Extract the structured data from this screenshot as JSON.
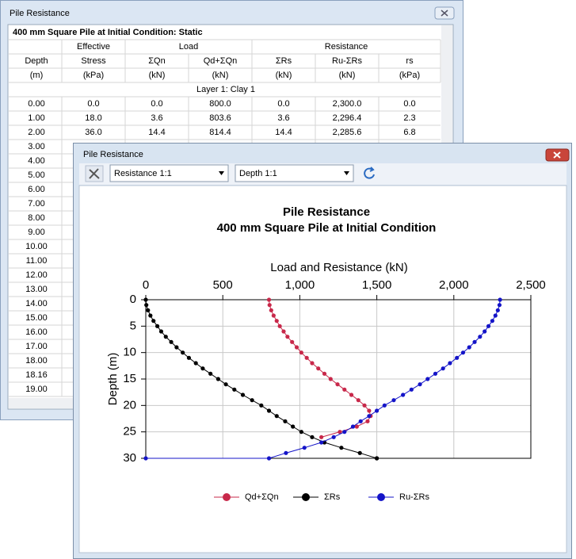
{
  "back_window": {
    "title": "Pile Resistance",
    "table": {
      "caption": "400 mm Square Pile at Initial Condition: Static",
      "group_headers": [
        "Effective",
        "Load",
        "Resistance"
      ],
      "columns": [
        "Depth",
        "Stress",
        "ΣQn",
        "Qd+ΣQn",
        "ΣRs",
        "Ru-ΣRs",
        "rs"
      ],
      "units": [
        "(m)",
        "(kPa)",
        "(kN)",
        "(kN)",
        "(kN)",
        "(kN)",
        "(kPa)"
      ],
      "layer": "Layer 1: Clay 1",
      "rows": [
        [
          "0.00",
          "0.0",
          "0.0",
          "800.0",
          "0.0",
          "2,300.0",
          "0.0"
        ],
        [
          "1.00",
          "18.0",
          "3.6",
          "803.6",
          "3.6",
          "2,296.4",
          "2.3"
        ],
        [
          "2.00",
          "36.0",
          "14.4",
          "814.4",
          "14.4",
          "2,285.6",
          "6.8"
        ],
        [
          "3.00"
        ],
        [
          "4.00"
        ],
        [
          "5.00"
        ],
        [
          "6.00"
        ],
        [
          "7.00"
        ],
        [
          "8.00"
        ],
        [
          "9.00"
        ],
        [
          "10.00"
        ],
        [
          "11.00"
        ],
        [
          "12.00"
        ],
        [
          "13.00"
        ],
        [
          "14.00"
        ],
        [
          "15.00"
        ],
        [
          "16.00"
        ],
        [
          "17.00"
        ],
        [
          "18.00"
        ],
        [
          "18.16"
        ],
        [
          "19.00"
        ]
      ]
    }
  },
  "front_window": {
    "title": "Pile Resistance",
    "toolbar": {
      "resistance_scale": "Resistance 1:1",
      "depth_scale": "Depth 1:1"
    }
  },
  "chart_data": {
    "type": "line",
    "orientation": "horizontal",
    "y_inverted": true,
    "title": "Pile Resistance",
    "subtitle": "400 mm Square Pile at Initial Condition",
    "x_label": "Load and Resistance (kN)",
    "y_label": "Depth (m)",
    "xlim": [
      0,
      2500
    ],
    "xticks": [
      0,
      500,
      {
        "value": 1000,
        "label": "1,000"
      },
      {
        "value": 1500,
        "label": "1,500"
      },
      {
        "value": 2000,
        "label": "2,000"
      },
      {
        "value": 2500,
        "label": "2,500"
      }
    ],
    "ylim": [
      0,
      30
    ],
    "yticks": [
      0,
      5,
      10,
      15,
      20,
      25,
      30
    ],
    "grid": true,
    "legend": "bottom",
    "x": [
      0,
      1,
      2,
      3,
      4,
      5,
      6,
      7,
      8,
      9,
      10,
      11,
      12,
      13,
      14,
      15,
      16,
      17,
      18,
      19,
      20,
      21,
      22,
      23,
      24,
      25,
      26,
      27,
      28,
      29,
      30,
      30
    ],
    "series": [
      {
        "name": "Qd+ΣQn",
        "color": "#c8284a",
        "values": [
          800,
          803.6,
          814.4,
          830,
          850,
          870,
          895,
          920,
          950,
          980,
          1010,
          1045,
          1080,
          1120,
          1160,
          1200,
          1245,
          1290,
          1335,
          1380,
          1420,
          1450,
          1460,
          1440,
          1370,
          1260,
          1140,
          null,
          null,
          null,
          null,
          null
        ]
      },
      {
        "name": "ΣRs",
        "color": "#000000",
        "values": [
          0,
          3.6,
          14.4,
          30,
          50,
          75,
          100,
          130,
          165,
          200,
          240,
          280,
          325,
          370,
          420,
          470,
          520,
          575,
          630,
          690,
          750,
          800,
          850,
          905,
          955,
          1010,
          1080,
          1160,
          1270,
          1390,
          1500,
          1500
        ]
      },
      {
        "name": "Ru-ΣRs",
        "color": "#1414c8",
        "values": [
          2300,
          2296.4,
          2285.6,
          2270,
          2250,
          2225,
          2200,
          2170,
          2135,
          2100,
          2060,
          2020,
          1975,
          1930,
          1880,
          1830,
          1780,
          1725,
          1670,
          1610,
          1550,
          1500,
          1450,
          1395,
          1345,
          1290,
          1220,
          1140,
          1030,
          910,
          800,
          0
        ]
      }
    ]
  }
}
